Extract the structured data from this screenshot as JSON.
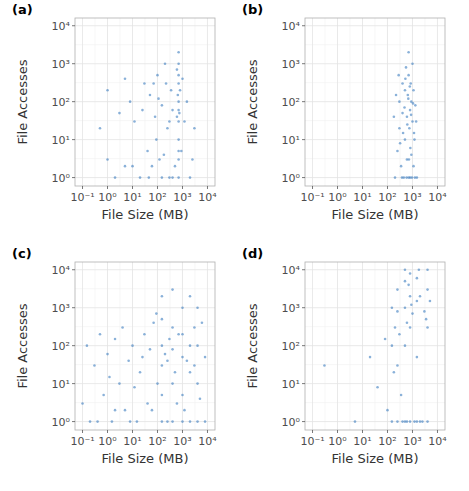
{
  "chart_data": [
    {
      "type": "scatter",
      "title": "(a)",
      "x_label": "File Size (MB)",
      "y_label": "File Accesses",
      "color": "#3c7dbf",
      "log": true,
      "grid": true,
      "xlim": [
        0.05,
        20000
      ],
      "ylim": [
        0.6,
        16000
      ],
      "xticks": [
        {
          "value": 0.1,
          "label": "10⁻¹"
        },
        {
          "value": 1,
          "label": "10⁰"
        },
        {
          "value": 10,
          "label": "10¹"
        },
        {
          "value": 100,
          "label": "10²"
        },
        {
          "value": 1000,
          "label": "10³"
        },
        {
          "value": 10000,
          "label": "10⁴"
        }
      ],
      "yticks": [
        {
          "value": 1,
          "label": "10⁰"
        },
        {
          "value": 10,
          "label": "10¹"
        },
        {
          "value": 100,
          "label": "10²"
        },
        {
          "value": 1000,
          "label": "10³"
        },
        {
          "value": 10000,
          "label": "10⁴"
        }
      ],
      "x": [
        0.5,
        1,
        2,
        3,
        5,
        8,
        12,
        20,
        30,
        40,
        50,
        60,
        80,
        100,
        120,
        150,
        200,
        250,
        300,
        350,
        400,
        500,
        600,
        700,
        700,
        700,
        700,
        700,
        700,
        700,
        700,
        750,
        800,
        900,
        1000,
        1200,
        1500,
        2000,
        3000,
        10,
        25,
        45,
        70,
        90,
        110,
        180,
        220,
        400,
        600,
        650,
        700,
        700,
        1,
        5,
        300,
        150,
        700,
        2500
      ],
      "y": [
        20,
        200,
        1,
        50,
        2,
        100,
        30,
        1,
        300,
        5,
        150,
        2,
        40,
        500,
        3,
        80,
        1000,
        20,
        1,
        200,
        60,
        2,
        700,
        1,
        3,
        10,
        30,
        100,
        300,
        1000,
        2000,
        50,
        200,
        5,
        400,
        30,
        100,
        1,
        20,
        2,
        60,
        1,
        300,
        10,
        120,
        4,
        300,
        1,
        40,
        150,
        60,
        500,
        3,
        400,
        30,
        1,
        5,
        3
      ]
    },
    {
      "type": "scatter",
      "title": "(b)",
      "x_label": "File Size (MB)",
      "y_label": "File Accesses",
      "color": "#3c7dbf",
      "log": true,
      "grid": true,
      "xlim": [
        0.05,
        20000
      ],
      "ylim": [
        0.6,
        16000
      ],
      "xticks": [
        {
          "value": 0.1,
          "label": "10⁻¹"
        },
        {
          "value": 1,
          "label": "10⁰"
        },
        {
          "value": 10,
          "label": "10¹"
        },
        {
          "value": 100,
          "label": "10²"
        },
        {
          "value": 1000,
          "label": "10³"
        },
        {
          "value": 10000,
          "label": "10⁴"
        }
      ],
      "yticks": [
        {
          "value": 1,
          "label": "10⁰"
        },
        {
          "value": 10,
          "label": "10¹"
        },
        {
          "value": 100,
          "label": "10²"
        },
        {
          "value": 1000,
          "label": "10³"
        },
        {
          "value": 10000,
          "label": "10⁴"
        }
      ],
      "x": [
        200,
        250,
        300,
        300,
        350,
        400,
        400,
        450,
        500,
        500,
        550,
        600,
        600,
        650,
        700,
        700,
        700,
        750,
        800,
        800,
        850,
        900,
        900,
        1000,
        1000,
        1100,
        1100,
        1200,
        1300,
        1500,
        180,
        220,
        280,
        320,
        380,
        420,
        480,
        520,
        580,
        620,
        680,
        720,
        780,
        820,
        880,
        950,
        1050,
        1150,
        1250,
        1400
      ],
      "y": [
        1,
        5,
        20,
        100,
        2,
        50,
        300,
        1,
        10,
        200,
        800,
        3,
        40,
        150,
        1,
        2000,
        500,
        20,
        60,
        1,
        300,
        100,
        4,
        30,
        1000,
        2,
        200,
        10,
        80,
        1,
        40,
        150,
        500,
        8,
        1,
        15,
        70,
        400,
        1,
        25,
        120,
        3,
        250,
        6,
        45,
        1,
        90,
        15,
        1,
        30
      ]
    },
    {
      "type": "scatter",
      "title": "(c)",
      "x_label": "File Size (MB)",
      "y_label": "File Accesses",
      "color": "#3c7dbf",
      "log": true,
      "grid": true,
      "xlim": [
        0.05,
        20000
      ],
      "ylim": [
        0.6,
        16000
      ],
      "xticks": [
        {
          "value": 0.1,
          "label": "10⁻¹"
        },
        {
          "value": 1,
          "label": "10⁰"
        },
        {
          "value": 10,
          "label": "10¹"
        },
        {
          "value": 100,
          "label": "10²"
        },
        {
          "value": 1000,
          "label": "10³"
        },
        {
          "value": 10000,
          "label": "10⁴"
        }
      ],
      "yticks": [
        {
          "value": 1,
          "label": "10⁰"
        },
        {
          "value": 10,
          "label": "10¹"
        },
        {
          "value": 100,
          "label": "10²"
        },
        {
          "value": 1000,
          "label": "10³"
        },
        {
          "value": 10000,
          "label": "10⁴"
        }
      ],
      "x": [
        0.1,
        0.15,
        0.2,
        0.3,
        0.5,
        0.7,
        1,
        1.5,
        2,
        3,
        4,
        5,
        7,
        10,
        15,
        20,
        30,
        40,
        50,
        70,
        100,
        150,
        150,
        150,
        150,
        150,
        150,
        200,
        250,
        300,
        400,
        400,
        400,
        400,
        400,
        500,
        700,
        1000,
        1000,
        1000,
        1000,
        1000,
        1500,
        2000,
        2000,
        2000,
        2000,
        3000,
        4000,
        4000,
        4000,
        4000,
        5000,
        8000,
        8000,
        6000,
        2,
        0.4,
        12,
        60,
        90,
        250,
        600,
        1200,
        3000,
        25,
        8,
        1.2
      ],
      "y": [
        3,
        100,
        1,
        30,
        200,
        5,
        60,
        1,
        150,
        10,
        300,
        2,
        40,
        100,
        1,
        20,
        200,
        3,
        80,
        400,
        10,
        1,
        5,
        30,
        100,
        500,
        2000,
        60,
        1,
        150,
        1,
        10,
        80,
        300,
        3000,
        20,
        200,
        1,
        5,
        50,
        200,
        1000,
        40,
        1,
        20,
        100,
        2000,
        300,
        1,
        10,
        100,
        1000,
        4,
        50,
        1,
        400,
        2,
        1,
        8,
        2,
        700,
        40,
        3,
        2,
        30,
        50,
        1,
        15
      ]
    },
    {
      "type": "scatter",
      "title": "(d)",
      "x_label": "File Size (MB)",
      "y_label": "File Accesses",
      "color": "#3c7dbf",
      "log": true,
      "grid": true,
      "xlim": [
        0.05,
        20000
      ],
      "ylim": [
        0.6,
        16000
      ],
      "xticks": [
        {
          "value": 0.1,
          "label": "10⁻¹"
        },
        {
          "value": 1,
          "label": "10⁰"
        },
        {
          "value": 10,
          "label": "10¹"
        },
        {
          "value": 100,
          "label": "10²"
        },
        {
          "value": 1000,
          "label": "10³"
        },
        {
          "value": 10000,
          "label": "10⁴"
        }
      ],
      "yticks": [
        {
          "value": 1,
          "label": "10⁰"
        },
        {
          "value": 10,
          "label": "10¹"
        },
        {
          "value": 100,
          "label": "10²"
        },
        {
          "value": 1000,
          "label": "10³"
        },
        {
          "value": 10000,
          "label": "10⁴"
        }
      ],
      "x": [
        0.3,
        5,
        20,
        80,
        150,
        150,
        150,
        200,
        250,
        250,
        250,
        250,
        300,
        400,
        500,
        500,
        500,
        500,
        500,
        600,
        800,
        800,
        800,
        800,
        1000,
        1200,
        1500,
        1500,
        1500,
        1500,
        2000,
        2500,
        3000,
        4000,
        4000,
        4000,
        4000,
        5000,
        180,
        350,
        600,
        700,
        900,
        1800,
        3500,
        2000,
        100,
        40
      ],
      "y": [
        30,
        1,
        50,
        150,
        1,
        100,
        1000,
        300,
        1,
        30,
        800,
        3000,
        200,
        1,
        1,
        100,
        1000,
        5000,
        10000,
        400,
        1,
        300,
        2000,
        8000,
        700,
        1,
        1,
        50,
        1500,
        6000,
        2000,
        1,
        800,
        1,
        300,
        3000,
        10000,
        1500,
        20,
        5,
        1,
        4000,
        1200,
        10000,
        500,
        1,
        2,
        8
      ]
    }
  ]
}
